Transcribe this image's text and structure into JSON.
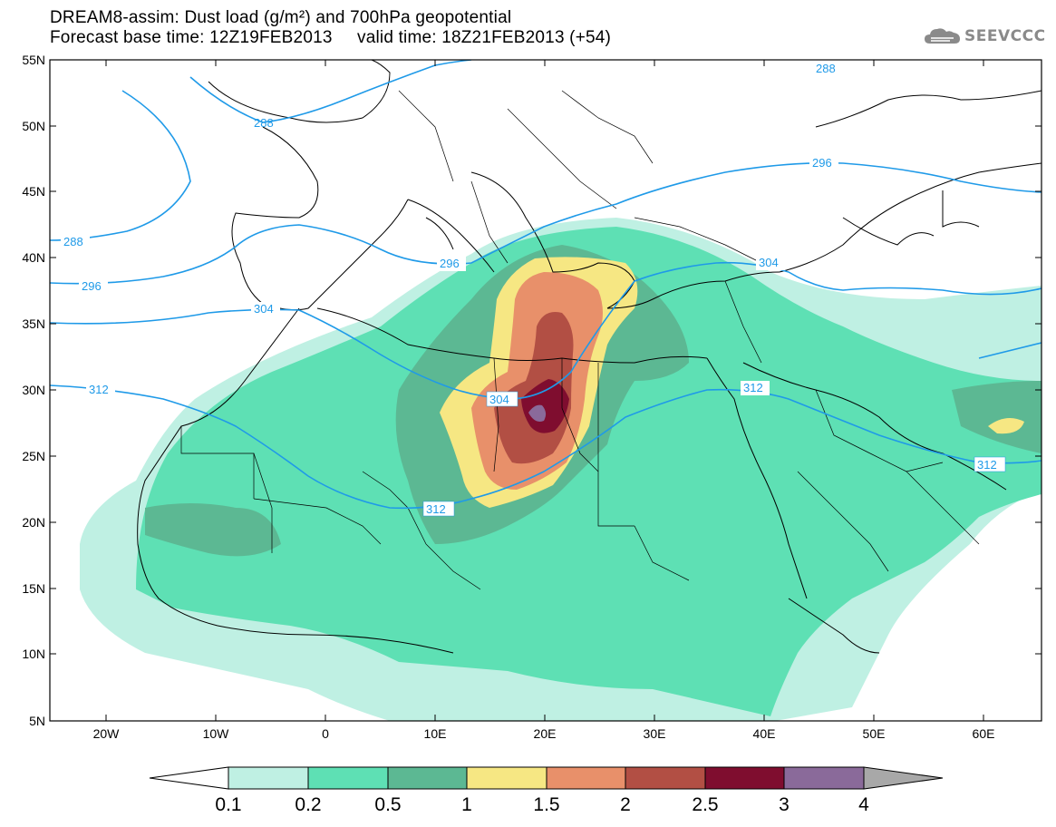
{
  "title_line1": "DREAM8-assim: Dust load (g/m²) and 700hPa geopotential",
  "title_line2": "Forecast base time: 12Z19FEB2013     valid time: 18Z21FEB2013 (+54)",
  "logo_text": "SEEVCCC",
  "latitude_labels": [
    "55N",
    "50N",
    "45N",
    "40N",
    "35N",
    "30N",
    "25N",
    "20N",
    "15N",
    "10N",
    "5N"
  ],
  "longitude_labels": [
    "20W",
    "10W",
    "0",
    "10E",
    "20E",
    "30E",
    "40E",
    "50E",
    "60E"
  ],
  "contour_labels": [
    "288",
    "296",
    "304",
    "312"
  ],
  "legend": {
    "tick_labels": [
      "0.1",
      "0.2",
      "0.5",
      "1",
      "1.5",
      "2",
      "2.5",
      "3",
      "4"
    ],
    "colors": [
      "#bff0e3",
      "#5ee0b4",
      "#5cb893",
      "#f6e783",
      "#e8906a",
      "#b24f44",
      "#7f0d2f",
      "#8a6a9a",
      "#a8a8a8"
    ]
  },
  "colors": {
    "dust_0_1": "#bff0e3",
    "dust_0_2": "#5ee0b4",
    "dust_0_5": "#5cb893",
    "dust_1": "#f6e783",
    "dust_1_5": "#e8906a",
    "dust_2": "#b24f44",
    "dust_2_5": "#7f0d2f",
    "dust_3": "#8a6a9a",
    "geopotential_line": "#1f9ae8",
    "coastline": "#000000"
  }
}
